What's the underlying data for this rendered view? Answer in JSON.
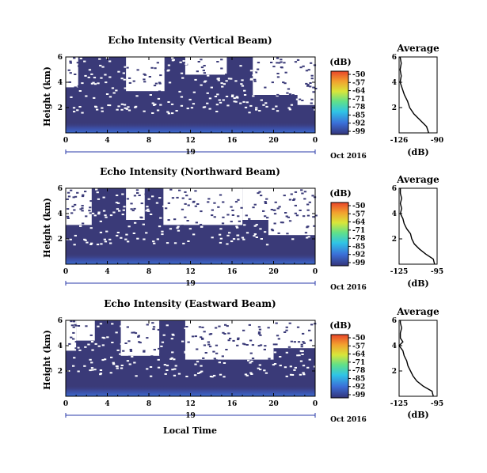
{
  "chart_data": [
    {
      "type": "heatmap",
      "title": "Echo Intensity (Vertical Beam)",
      "ylabel": "Height (km)",
      "xlim": [
        0,
        24
      ],
      "ylim": [
        0,
        6
      ],
      "x_ticks": [
        "0",
        "4",
        "8",
        "12",
        "16",
        "20",
        "0"
      ],
      "y_ticks": [
        "2",
        "4",
        "6"
      ],
      "date_day": "19",
      "date_month_year": "Oct 2016",
      "colorbar": {
        "label": "(dB)",
        "ticks": [
          "-50",
          "-57",
          "-64",
          "-71",
          "-78",
          "-85",
          "-92",
          "-99"
        ]
      },
      "profile": {
        "title": "Average",
        "xlabel": "(dB)",
        "x_ticks": [
          "-126",
          "-90"
        ],
        "y_ticks": [
          "2",
          "4",
          "6"
        ],
        "xlim": [
          -126,
          -90
        ],
        "points": [
          [
            -98,
            0
          ],
          [
            -100,
            0.5
          ],
          [
            -106,
            1.0
          ],
          [
            -112,
            1.5
          ],
          [
            -116,
            2.0
          ],
          [
            -118,
            2.5
          ],
          [
            -121,
            3.0
          ],
          [
            -123,
            3.5
          ],
          [
            -125,
            4.0
          ],
          [
            -124,
            4.5
          ],
          [
            -125,
            5.0
          ],
          [
            -124,
            5.5
          ],
          [
            -125,
            6.0
          ]
        ]
      }
    },
    {
      "type": "heatmap",
      "title": "Echo Intensity (Northward Beam)",
      "ylabel": "Height (km)",
      "xlim": [
        0,
        24
      ],
      "ylim": [
        0,
        6
      ],
      "x_ticks": [
        "0",
        "4",
        "8",
        "12",
        "16",
        "20",
        "0"
      ],
      "y_ticks": [
        "2",
        "4",
        "6"
      ],
      "date_day": "19",
      "date_month_year": "Oct 2016",
      "colorbar": {
        "label": "(dB)",
        "ticks": [
          "-50",
          "-57",
          "-64",
          "-71",
          "-78",
          "-85",
          "-92",
          "-99"
        ]
      },
      "profile": {
        "title": "Average",
        "xlabel": "(dB)",
        "x_ticks": [
          "-125",
          "-95"
        ],
        "y_ticks": [
          "2",
          "4",
          "6"
        ],
        "xlim": [
          -125,
          -95
        ],
        "points": [
          [
            -97,
            0
          ],
          [
            -98,
            0.4
          ],
          [
            -104,
            0.8
          ],
          [
            -109,
            1.2
          ],
          [
            -113,
            1.6
          ],
          [
            -115,
            2.0
          ],
          [
            -116,
            2.4
          ],
          [
            -119,
            2.8
          ],
          [
            -121,
            3.2
          ],
          [
            -122,
            3.6
          ],
          [
            -124,
            4.0
          ],
          [
            -123,
            4.4
          ],
          [
            -124,
            4.8
          ],
          [
            -123,
            5.2
          ],
          [
            -124,
            5.6
          ],
          [
            -124,
            6.0
          ]
        ]
      }
    },
    {
      "type": "heatmap",
      "title": "Echo Intensity (Eastward Beam)",
      "ylabel": "Height (km)",
      "xlabel": "Local Time",
      "xlim": [
        0,
        24
      ],
      "ylim": [
        0,
        6
      ],
      "x_ticks": [
        "0",
        "4",
        "8",
        "12",
        "16",
        "20",
        "0"
      ],
      "y_ticks": [
        "2",
        "4",
        "6"
      ],
      "date_day": "19",
      "date_month_year": "Oct 2016",
      "colorbar": {
        "label": "(dB)",
        "ticks": [
          "-50",
          "-57",
          "-64",
          "-71",
          "-78",
          "-85",
          "-92",
          "-99"
        ]
      },
      "profile": {
        "title": "Average",
        "xlabel": "(dB)",
        "x_ticks": [
          "-125",
          "-95"
        ],
        "y_ticks": [
          "2",
          "4",
          "6"
        ],
        "xlim": [
          -125,
          -95
        ],
        "points": [
          [
            -98,
            0
          ],
          [
            -99,
            0.4
          ],
          [
            -106,
            0.8
          ],
          [
            -111,
            1.2
          ],
          [
            -114,
            1.6
          ],
          [
            -116,
            2.0
          ],
          [
            -118,
            2.4
          ],
          [
            -119,
            2.8
          ],
          [
            -121,
            3.2
          ],
          [
            -122,
            3.6
          ],
          [
            -125,
            4.0
          ],
          [
            -122,
            4.3
          ],
          [
            -124,
            4.6
          ],
          [
            -124,
            5.0
          ],
          [
            -123,
            5.4
          ],
          [
            -124,
            5.8
          ],
          [
            -124,
            6.0
          ]
        ]
      }
    }
  ],
  "colors": {
    "field": "#3a3a78",
    "colormap": [
      "#34347a",
      "#3b6fd8",
      "#2fc4e6",
      "#5fe08a",
      "#d9e63a",
      "#f2a12e",
      "#e9452a"
    ]
  }
}
